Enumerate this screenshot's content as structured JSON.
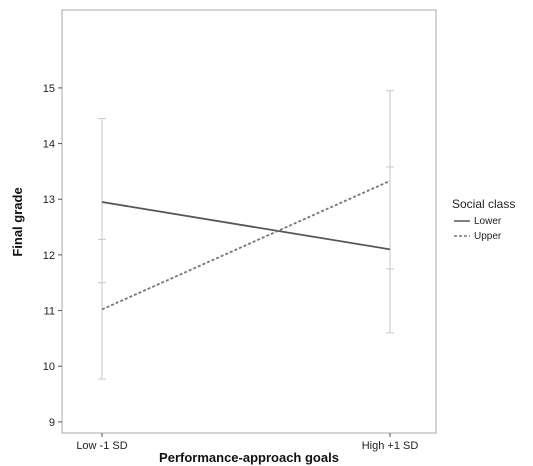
{
  "chart_data": {
    "type": "line",
    "categories": [
      "Low -1 SD",
      "High +1 SD"
    ],
    "xlabel": "Performance-approach goals",
    "ylabel": "Final grade",
    "ylim": [
      8.8,
      16.4
    ],
    "yticks": [
      9,
      10,
      11,
      12,
      13,
      14,
      15
    ],
    "legend": {
      "title": "Social class",
      "placement": "right"
    },
    "grid": false,
    "series": [
      {
        "name": "Lower",
        "values": [
          12.95,
          12.1
        ],
        "error_low": [
          11.5,
          10.6
        ],
        "error_high": [
          14.45,
          13.58
        ],
        "line_style": "solid",
        "color": "#555555"
      },
      {
        "name": "Upper",
        "values": [
          11.02,
          13.33
        ],
        "error_low": [
          9.77,
          11.75
        ],
        "error_high": [
          12.28,
          14.95
        ],
        "line_style": "dashed",
        "color": "#777777"
      }
    ]
  }
}
